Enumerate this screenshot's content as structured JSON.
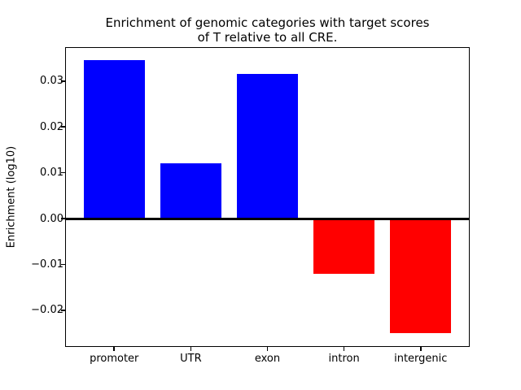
{
  "chart_data": {
    "type": "bar",
    "title_lines": [
      "Enrichment of genomic categories with target scores",
      "of T relative to all CRE."
    ],
    "title": "Enrichment of genomic categories with target scores of T relative to all CRE.",
    "xlabel": "",
    "ylabel": "Enrichment (log10)",
    "categories": [
      "promoter",
      "UTR",
      "exon",
      "intron",
      "intergenic"
    ],
    "values": [
      0.0345,
      0.012,
      0.0315,
      -0.012,
      -0.025
    ],
    "positive_color": "#0000ff",
    "negative_color": "#ff0000",
    "ylim": [
      -0.028,
      0.0374
    ],
    "yticks": [
      0.03,
      0.02,
      0.01,
      0.0,
      -0.01,
      -0.02
    ],
    "ytick_labels": [
      "0.03",
      "0.02",
      "0.01",
      "0.00",
      "−0.01",
      "−0.02"
    ],
    "zero_line": true,
    "grid": false,
    "legend": null,
    "background_color": "#ffffff",
    "text_color": "#000000"
  }
}
